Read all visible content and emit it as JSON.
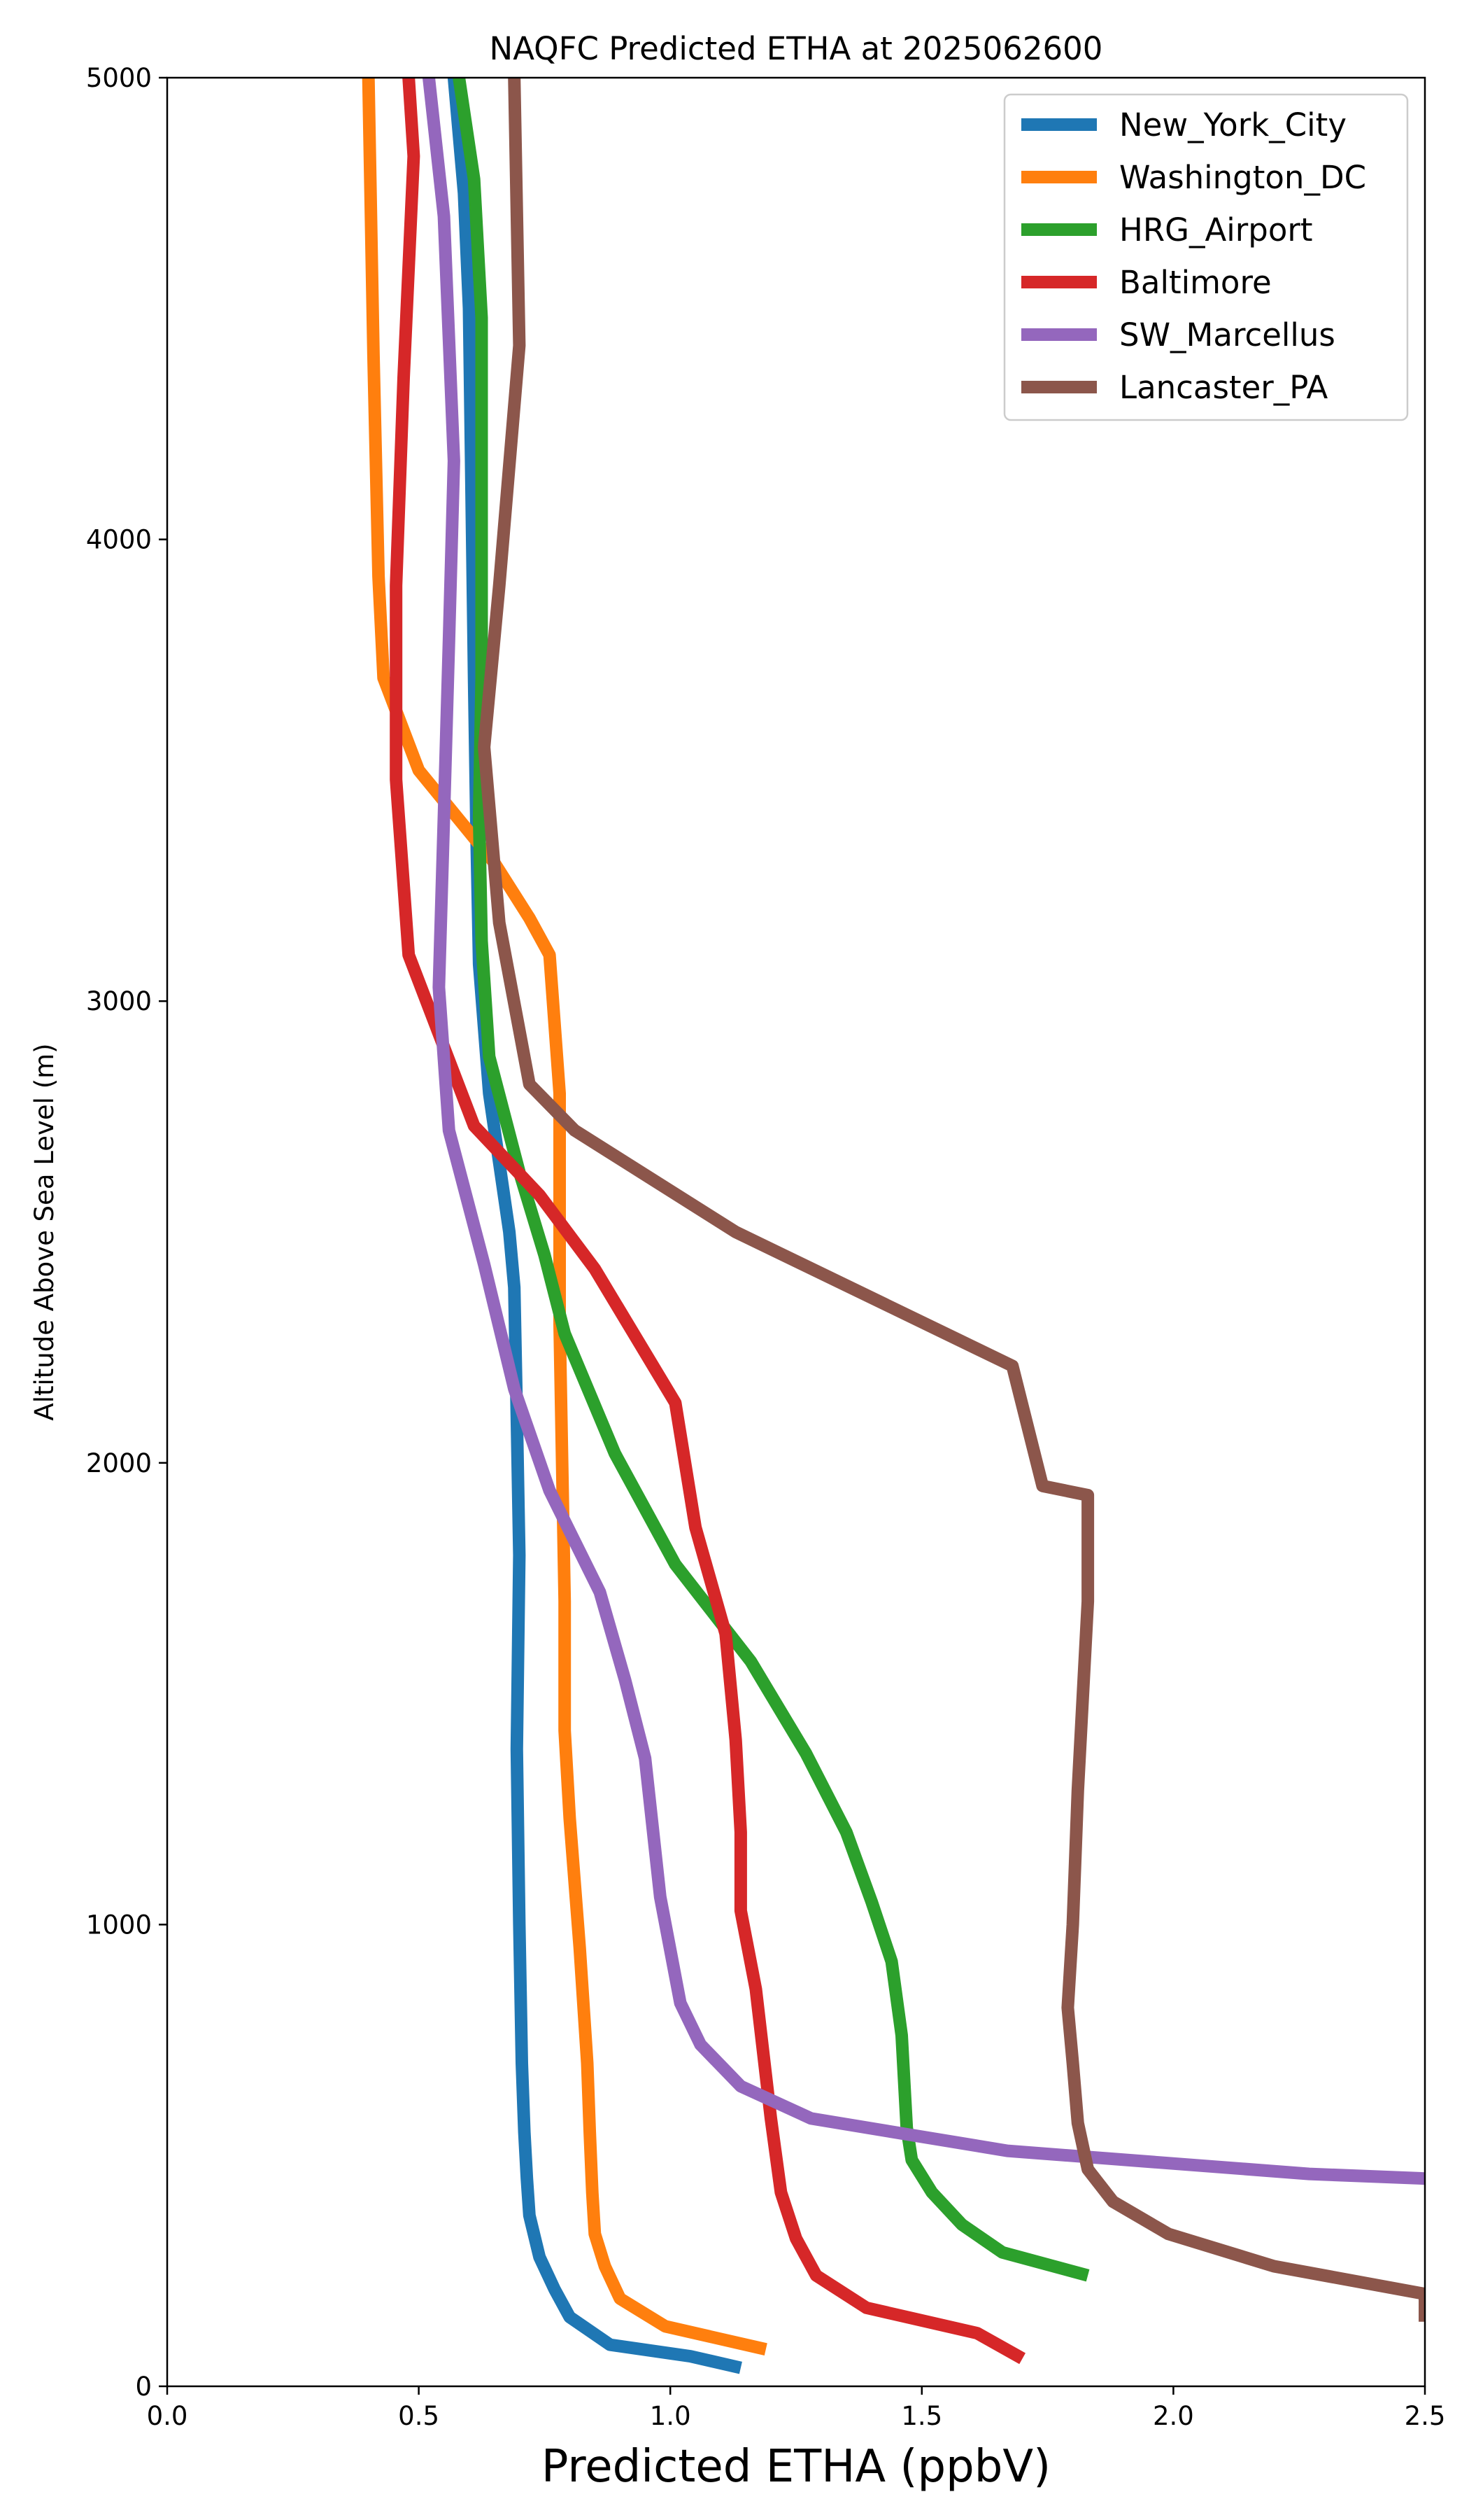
{
  "chart_data": {
    "type": "line",
    "title": "NAQFC Predicted ETHA at 2025062600",
    "xlabel": "Predicted ETHA (ppbV)",
    "ylabel": "Altitude Above Sea Level (m)",
    "xlim": [
      0,
      2.5
    ],
    "ylim": [
      0,
      5000
    ],
    "x_ticks": [
      0.0,
      0.5,
      1.0,
      1.5,
      2.0,
      2.5
    ],
    "x_tick_labels": [
      "0.0",
      "0.5",
      "1.0",
      "1.5",
      "2.0",
      "2.5"
    ],
    "y_ticks": [
      0,
      1000,
      2000,
      3000,
      4000,
      5000
    ],
    "y_tick_labels": [
      "0",
      "1000",
      "2000",
      "3000",
      "4000",
      "5000"
    ],
    "grid": false,
    "legend_position": "top-right",
    "series": [
      {
        "name": "New_York_City",
        "color": "#1f77b4",
        "points": [
          [
            1.14,
            40
          ],
          [
            1.04,
            65
          ],
          [
            0.88,
            90
          ],
          [
            0.8,
            150
          ],
          [
            0.77,
            210
          ],
          [
            0.74,
            280
          ],
          [
            0.72,
            370
          ],
          [
            0.715,
            450
          ],
          [
            0.71,
            550
          ],
          [
            0.705,
            700
          ],
          [
            0.7,
            1000
          ],
          [
            0.695,
            1380
          ],
          [
            0.7,
            1800
          ],
          [
            0.695,
            2100
          ],
          [
            0.69,
            2380
          ],
          [
            0.68,
            2500
          ],
          [
            0.66,
            2650
          ],
          [
            0.64,
            2800
          ],
          [
            0.62,
            3080
          ],
          [
            0.615,
            3350
          ],
          [
            0.61,
            3700
          ],
          [
            0.605,
            4100
          ],
          [
            0.6,
            4500
          ],
          [
            0.59,
            4750
          ],
          [
            0.57,
            5000
          ]
        ]
      },
      {
        "name": "Washington_DC",
        "color": "#ff7f0e",
        "points": [
          [
            1.19,
            80
          ],
          [
            0.99,
            130
          ],
          [
            0.9,
            190
          ],
          [
            0.87,
            260
          ],
          [
            0.85,
            330
          ],
          [
            0.845,
            420
          ],
          [
            0.84,
            550
          ],
          [
            0.835,
            700
          ],
          [
            0.82,
            950
          ],
          [
            0.8,
            1230
          ],
          [
            0.79,
            1420
          ],
          [
            0.79,
            1700
          ],
          [
            0.785,
            2000
          ],
          [
            0.78,
            2300
          ],
          [
            0.78,
            2500
          ],
          [
            0.78,
            2800
          ],
          [
            0.76,
            3100
          ],
          [
            0.72,
            3180
          ],
          [
            0.65,
            3300
          ],
          [
            0.5,
            3500
          ],
          [
            0.43,
            3700
          ],
          [
            0.42,
            3920
          ],
          [
            0.41,
            4400
          ],
          [
            0.4,
            5000
          ]
        ]
      },
      {
        "name": "HRG_Airport",
        "color": "#2ca02c",
        "points": [
          [
            1.83,
            240
          ],
          [
            1.66,
            290
          ],
          [
            1.58,
            350
          ],
          [
            1.52,
            420
          ],
          [
            1.48,
            490
          ],
          [
            1.47,
            560
          ],
          [
            1.46,
            760
          ],
          [
            1.44,
            920
          ],
          [
            1.4,
            1050
          ],
          [
            1.35,
            1200
          ],
          [
            1.27,
            1370
          ],
          [
            1.16,
            1570
          ],
          [
            1.01,
            1780
          ],
          [
            0.89,
            2020
          ],
          [
            0.79,
            2280
          ],
          [
            0.75,
            2450
          ],
          [
            0.7,
            2630
          ],
          [
            0.64,
            2880
          ],
          [
            0.625,
            3130
          ],
          [
            0.62,
            3400
          ],
          [
            0.625,
            3700
          ],
          [
            0.625,
            4000
          ],
          [
            0.625,
            4480
          ],
          [
            0.61,
            4780
          ],
          [
            0.58,
            5000
          ]
        ]
      },
      {
        "name": "Baltimore",
        "color": "#d62728",
        "points": [
          [
            1.7,
            60
          ],
          [
            1.61,
            115
          ],
          [
            1.39,
            170
          ],
          [
            1.29,
            240
          ],
          [
            1.25,
            320
          ],
          [
            1.22,
            420
          ],
          [
            1.2,
            580
          ],
          [
            1.17,
            860
          ],
          [
            1.14,
            1030
          ],
          [
            1.14,
            1200
          ],
          [
            1.13,
            1400
          ],
          [
            1.11,
            1630
          ],
          [
            1.05,
            1860
          ],
          [
            1.01,
            2130
          ],
          [
            0.85,
            2420
          ],
          [
            0.74,
            2580
          ],
          [
            0.61,
            2730
          ],
          [
            0.48,
            3100
          ],
          [
            0.455,
            3480
          ],
          [
            0.455,
            3900
          ],
          [
            0.47,
            4350
          ],
          [
            0.49,
            4830
          ],
          [
            0.48,
            5000
          ]
        ]
      },
      {
        "name": "SW_Marcellus",
        "color": "#9467bd",
        "points": [
          [
            2.5,
            450
          ],
          [
            2.27,
            460
          ],
          [
            1.67,
            510
          ],
          [
            1.28,
            580
          ],
          [
            1.14,
            650
          ],
          [
            1.06,
            740
          ],
          [
            1.02,
            830
          ],
          [
            0.98,
            1060
          ],
          [
            0.95,
            1360
          ],
          [
            0.91,
            1530
          ],
          [
            0.86,
            1720
          ],
          [
            0.76,
            1940
          ],
          [
            0.69,
            2160
          ],
          [
            0.63,
            2430
          ],
          [
            0.56,
            2720
          ],
          [
            0.54,
            3030
          ],
          [
            0.55,
            3400
          ],
          [
            0.56,
            3780
          ],
          [
            0.57,
            4170
          ],
          [
            0.55,
            4700
          ],
          [
            0.52,
            5000
          ]
        ]
      },
      {
        "name": "Lancaster_PA",
        "color": "#8c564b",
        "points": [
          [
            2.5,
            140
          ],
          [
            2.5,
            200
          ],
          [
            2.2,
            260
          ],
          [
            1.99,
            330
          ],
          [
            1.88,
            400
          ],
          [
            1.83,
            470
          ],
          [
            1.81,
            570
          ],
          [
            1.8,
            700
          ],
          [
            1.79,
            820
          ],
          [
            1.8,
            1000
          ],
          [
            1.81,
            1290
          ],
          [
            1.83,
            1700
          ],
          [
            1.83,
            1930
          ],
          [
            1.74,
            1950
          ],
          [
            1.68,
            2210
          ],
          [
            1.13,
            2500
          ],
          [
            0.81,
            2720
          ],
          [
            0.72,
            2820
          ],
          [
            0.66,
            3170
          ],
          [
            0.63,
            3550
          ],
          [
            0.66,
            3900
          ],
          [
            0.7,
            4420
          ],
          [
            0.69,
            5000
          ]
        ]
      }
    ]
  }
}
